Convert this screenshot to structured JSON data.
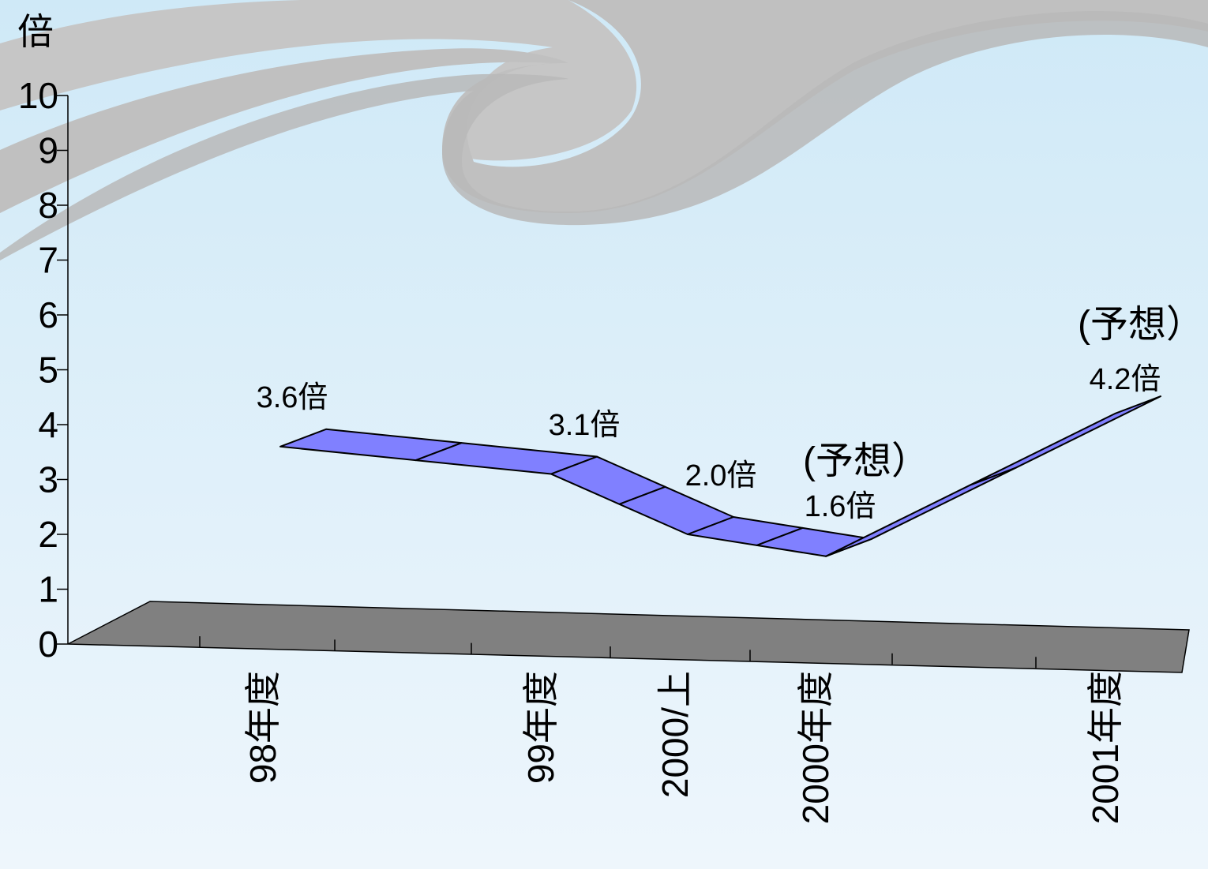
{
  "chart_data": {
    "type": "line",
    "style": "3d-ribbon",
    "title": "",
    "ylabel": "倍",
    "xlabel": "",
    "ylim": [
      0,
      10
    ],
    "yticks": [
      "0",
      "1",
      "2",
      "3",
      "4",
      "5",
      "6",
      "7",
      "8",
      "9",
      "10"
    ],
    "categories": [
      "98年度",
      "99年度",
      "2000/上",
      "2000年度",
      "2001年度"
    ],
    "values": [
      3.6,
      3.1,
      2.0,
      1.6,
      4.2
    ],
    "data_labels": [
      "3.6倍",
      "3.1倍",
      "2.0倍",
      "1.6倍",
      "4.2倍"
    ],
    "annotations": [
      {
        "text": "(予想）",
        "category": "2000年度"
      },
      {
        "text": "(予想）",
        "category": "2001年度"
      }
    ],
    "grid": false,
    "legend": "none",
    "colors": {
      "series": "#8080ff",
      "floor": "#808080",
      "background_top": "#cfe9f7",
      "background_bottom": "#eef6fc",
      "swoosh": "#c8c8c8"
    }
  }
}
